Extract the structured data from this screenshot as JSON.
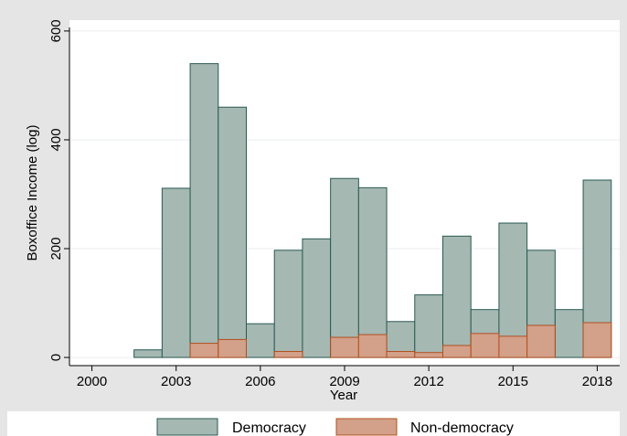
{
  "chart_data": {
    "type": "bar",
    "title": "",
    "xlabel": "Year",
    "ylabel": "Boxoffice Income (log)",
    "xlim": [
      1999.2,
      2018.8
    ],
    "ylim": [
      -15,
      620
    ],
    "x_ticks": [
      2000,
      2003,
      2006,
      2009,
      2012,
      2015,
      2018
    ],
    "y_ticks": [
      0,
      200,
      400,
      600
    ],
    "grid": true,
    "legend_position": "bottom",
    "bar_width": 1,
    "series": [
      {
        "name": "Democracy",
        "color": "#a5b8b2",
        "edge_color": "#2a5a52",
        "x": [
          2002,
          2003,
          2004,
          2005,
          2006,
          2007,
          2008,
          2009,
          2010,
          2011,
          2012,
          2013,
          2014,
          2015,
          2016,
          2017,
          2018
        ],
        "values": [
          14,
          311,
          540,
          460,
          62,
          197,
          218,
          329,
          312,
          66,
          115,
          223,
          88,
          247,
          197,
          88,
          326
        ]
      },
      {
        "name": "Non-democracy",
        "color": "#d3a08a",
        "edge_color": "#b1501e",
        "x": [
          2004,
          2005,
          2007,
          2009,
          2010,
          2011,
          2012,
          2013,
          2014,
          2015,
          2016,
          2018
        ],
        "values": [
          26,
          33,
          11,
          37,
          42,
          11,
          9,
          22,
          44,
          39,
          59,
          64
        ]
      }
    ]
  }
}
